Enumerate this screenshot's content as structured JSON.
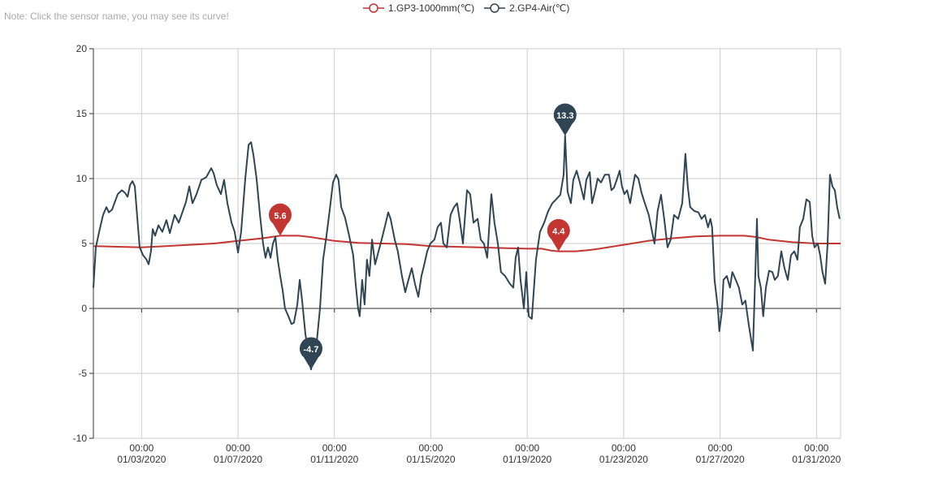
{
  "note": "Note: Click the sensor name, you may see its curve!",
  "legend": [
    {
      "label": "1.GP3-1000mm(℃)",
      "color": "#c23531"
    },
    {
      "label": "2.GP4-Air(℃)",
      "color": "#2f4554"
    }
  ],
  "chart_data": {
    "type": "line",
    "title": "",
    "xlabel": "",
    "ylabel": "",
    "xlim": [
      0,
      31
    ],
    "ylim": [
      -10,
      20
    ],
    "y_ticks": [
      20,
      15,
      10,
      5,
      0,
      -5,
      -10
    ],
    "x_ticks": [
      {
        "x": 2,
        "time": "00:00",
        "date": "01/03/2020"
      },
      {
        "x": 6,
        "time": "00:00",
        "date": "01/07/2020"
      },
      {
        "x": 10,
        "time": "00:00",
        "date": "01/11/2020"
      },
      {
        "x": 14,
        "time": "00:00",
        "date": "01/15/2020"
      },
      {
        "x": 18,
        "time": "00:00",
        "date": "01/19/2020"
      },
      {
        "x": 22,
        "time": "00:00",
        "date": "01/23/2020"
      },
      {
        "x": 26,
        "time": "00:00",
        "date": "01/27/2020"
      },
      {
        "x": 30,
        "time": "00:00",
        "date": "01/31/2020"
      }
    ],
    "grid": true,
    "legend_position": "top-center",
    "series": [
      {
        "name": "1.GP3-1000mm(℃)",
        "color": "#c23531",
        "points": [
          [
            0,
            4.8
          ],
          [
            1,
            4.75
          ],
          [
            2,
            4.7
          ],
          [
            3,
            4.8
          ],
          [
            4,
            4.9
          ],
          [
            5,
            5.0
          ],
          [
            6,
            5.2
          ],
          [
            7,
            5.4
          ],
          [
            7.75,
            5.6
          ],
          [
            8.5,
            5.6
          ],
          [
            9,
            5.5
          ],
          [
            9.5,
            5.35
          ],
          [
            10,
            5.2
          ],
          [
            11,
            5.05
          ],
          [
            12,
            5.0
          ],
          [
            13,
            4.95
          ],
          [
            14,
            4.8
          ],
          [
            15,
            4.75
          ],
          [
            16,
            4.7
          ],
          [
            17,
            4.65
          ],
          [
            18,
            4.6
          ],
          [
            18.6,
            4.6
          ],
          [
            19,
            4.45
          ],
          [
            19.3,
            4.4
          ],
          [
            20,
            4.4
          ],
          [
            20.6,
            4.5
          ],
          [
            21,
            4.6
          ],
          [
            22,
            4.9
          ],
          [
            23,
            5.2
          ],
          [
            24,
            5.4
          ],
          [
            25,
            5.55
          ],
          [
            26,
            5.6
          ],
          [
            27,
            5.6
          ],
          [
            27.5,
            5.5
          ],
          [
            28,
            5.3
          ],
          [
            29,
            5.1
          ],
          [
            30,
            5.0
          ],
          [
            31,
            5.0
          ]
        ],
        "mark_points": [
          {
            "x": 7.75,
            "value": 5.6,
            "label": "5.6"
          },
          {
            "x": 19.3,
            "value": 4.4,
            "label": "4.4"
          }
        ]
      },
      {
        "name": "2.GP4-Air(℃)",
        "color": "#2f4554",
        "points": [
          [
            0,
            1.6
          ],
          [
            0.1,
            4.7
          ],
          [
            0.24,
            5.9
          ],
          [
            0.4,
            7.2
          ],
          [
            0.54,
            7.8
          ],
          [
            0.64,
            7.4
          ],
          [
            0.77,
            7.6
          ],
          [
            1.01,
            8.8
          ],
          [
            1.18,
            9.1
          ],
          [
            1.31,
            8.9
          ],
          [
            1.42,
            8.6
          ],
          [
            1.52,
            9.5
          ],
          [
            1.62,
            9.8
          ],
          [
            1.72,
            9.4
          ],
          [
            1.85,
            6.3
          ],
          [
            1.92,
            4.7
          ],
          [
            2.06,
            4.1
          ],
          [
            2.19,
            3.8
          ],
          [
            2.29,
            3.4
          ],
          [
            2.39,
            4.4
          ],
          [
            2.46,
            6.1
          ],
          [
            2.56,
            5.6
          ],
          [
            2.7,
            6.4
          ],
          [
            2.86,
            5.9
          ],
          [
            3.03,
            6.8
          ],
          [
            3.17,
            5.8
          ],
          [
            3.37,
            7.2
          ],
          [
            3.54,
            6.6
          ],
          [
            3.71,
            7.5
          ],
          [
            3.84,
            8.2
          ],
          [
            3.98,
            9.4
          ],
          [
            4.11,
            8.1
          ],
          [
            4.28,
            8.8
          ],
          [
            4.48,
            9.9
          ],
          [
            4.68,
            10.1
          ],
          [
            4.89,
            10.8
          ],
          [
            4.99,
            10.4
          ],
          [
            5.12,
            9.5
          ],
          [
            5.29,
            8.8
          ],
          [
            5.42,
            9.9
          ],
          [
            5.56,
            8.1
          ],
          [
            5.73,
            6.6
          ],
          [
            5.86,
            5.9
          ],
          [
            6.0,
            4.3
          ],
          [
            6.13,
            5.9
          ],
          [
            6.3,
            10.0
          ],
          [
            6.44,
            12.6
          ],
          [
            6.54,
            12.8
          ],
          [
            6.64,
            11.8
          ],
          [
            6.77,
            10.0
          ],
          [
            6.91,
            7.2
          ],
          [
            7.04,
            5.0
          ],
          [
            7.14,
            3.9
          ],
          [
            7.24,
            4.7
          ],
          [
            7.35,
            3.9
          ],
          [
            7.45,
            5.0
          ],
          [
            7.55,
            5.5
          ],
          [
            7.65,
            3.75
          ],
          [
            7.75,
            2.5
          ],
          [
            7.85,
            1.4
          ],
          [
            7.95,
            0.0
          ],
          [
            8.09,
            -0.6
          ],
          [
            8.22,
            -1.2
          ],
          [
            8.32,
            -1.1
          ],
          [
            8.46,
            0.3
          ],
          [
            8.56,
            2.2
          ],
          [
            8.66,
            0.6
          ],
          [
            8.79,
            -1.9
          ],
          [
            8.93,
            -3.75
          ],
          [
            9.03,
            -4.7
          ],
          [
            9.13,
            -3.4
          ],
          [
            9.27,
            -2.5
          ],
          [
            9.4,
            0.0
          ],
          [
            9.53,
            3.75
          ],
          [
            9.67,
            5.6
          ],
          [
            9.8,
            7.5
          ],
          [
            9.94,
            9.7
          ],
          [
            10.07,
            10.3
          ],
          [
            10.17,
            9.9
          ],
          [
            10.28,
            7.8
          ],
          [
            10.44,
            7.0
          ],
          [
            10.61,
            5.6
          ],
          [
            10.78,
            4.1
          ],
          [
            10.88,
            1.9
          ],
          [
            10.98,
            0.0
          ],
          [
            11.05,
            -0.6
          ],
          [
            11.15,
            2.2
          ],
          [
            11.25,
            0.3
          ],
          [
            11.35,
            3.75
          ],
          [
            11.45,
            2.5
          ],
          [
            11.56,
            5.3
          ],
          [
            11.69,
            3.4
          ],
          [
            11.83,
            4.4
          ],
          [
            11.96,
            5.3
          ],
          [
            12.13,
            6.6
          ],
          [
            12.23,
            7.4
          ],
          [
            12.33,
            6.9
          ],
          [
            12.5,
            5.3
          ],
          [
            12.63,
            4.4
          ],
          [
            12.8,
            2.5
          ],
          [
            12.94,
            1.25
          ],
          [
            13.07,
            2.2
          ],
          [
            13.21,
            3.1
          ],
          [
            13.34,
            1.9
          ],
          [
            13.48,
            0.9
          ],
          [
            13.61,
            2.5
          ],
          [
            13.71,
            3.25
          ],
          [
            13.85,
            4.4
          ],
          [
            13.98,
            5.0
          ],
          [
            14.15,
            5.3
          ],
          [
            14.28,
            6.25
          ],
          [
            14.42,
            6.6
          ],
          [
            14.52,
            5.0
          ],
          [
            14.66,
            4.7
          ],
          [
            14.82,
            7.2
          ],
          [
            14.96,
            7.8
          ],
          [
            15.09,
            8.1
          ],
          [
            15.19,
            6.9
          ],
          [
            15.33,
            5.0
          ],
          [
            15.5,
            9.1
          ],
          [
            15.63,
            8.8
          ],
          [
            15.77,
            6.6
          ],
          [
            15.94,
            6.9
          ],
          [
            16.07,
            5.3
          ],
          [
            16.2,
            5.0
          ],
          [
            16.34,
            3.9
          ],
          [
            16.51,
            8.8
          ],
          [
            16.64,
            6.6
          ],
          [
            16.78,
            5.0
          ],
          [
            16.91,
            2.8
          ],
          [
            17.08,
            2.5
          ],
          [
            17.28,
            1.9
          ],
          [
            17.42,
            1.6
          ],
          [
            17.52,
            3.9
          ],
          [
            17.62,
            4.7
          ],
          [
            17.72,
            2.2
          ],
          [
            17.86,
            0.0
          ],
          [
            17.96,
            2.8
          ],
          [
            18.06,
            -0.6
          ],
          [
            18.19,
            -0.8
          ],
          [
            18.36,
            3.75
          ],
          [
            18.53,
            5.9
          ],
          [
            18.7,
            6.6
          ],
          [
            18.87,
            7.5
          ],
          [
            19.04,
            8.1
          ],
          [
            19.2,
            8.4
          ],
          [
            19.37,
            8.75
          ],
          [
            19.51,
            10.3
          ],
          [
            19.57,
            13.3
          ],
          [
            19.67,
            9.0
          ],
          [
            19.81,
            8.1
          ],
          [
            19.91,
            9.9
          ],
          [
            20.05,
            10.6
          ],
          [
            20.18,
            9.7
          ],
          [
            20.35,
            8.4
          ],
          [
            20.45,
            9.9
          ],
          [
            20.59,
            10.5
          ],
          [
            20.69,
            8.1
          ],
          [
            20.82,
            9.1
          ],
          [
            20.92,
            10.0
          ],
          [
            21.06,
            9.7
          ],
          [
            21.22,
            10.3
          ],
          [
            21.39,
            10.3
          ],
          [
            21.49,
            9.1
          ],
          [
            21.6,
            9.3
          ],
          [
            21.73,
            10.0
          ],
          [
            21.83,
            10.6
          ],
          [
            21.93,
            9.4
          ],
          [
            22.03,
            8.8
          ],
          [
            22.14,
            9.1
          ],
          [
            22.27,
            8.1
          ],
          [
            22.37,
            9.25
          ],
          [
            22.47,
            10.3
          ],
          [
            22.61,
            10.0
          ],
          [
            22.74,
            8.9
          ],
          [
            22.88,
            8.1
          ],
          [
            23.04,
            7.2
          ],
          [
            23.18,
            5.9
          ],
          [
            23.28,
            5.0
          ],
          [
            23.41,
            7.5
          ],
          [
            23.55,
            8.75
          ],
          [
            23.68,
            6.9
          ],
          [
            23.82,
            4.7
          ],
          [
            23.95,
            5.3
          ],
          [
            24.09,
            7.2
          ],
          [
            24.26,
            6.9
          ],
          [
            24.43,
            8.1
          ],
          [
            24.56,
            11.9
          ],
          [
            24.66,
            9.4
          ],
          [
            24.76,
            7.8
          ],
          [
            24.93,
            7.5
          ],
          [
            25.1,
            7.4
          ],
          [
            25.23,
            6.9
          ],
          [
            25.37,
            7.2
          ],
          [
            25.5,
            6.25
          ],
          [
            25.6,
            6.9
          ],
          [
            25.67,
            6.25
          ],
          [
            25.77,
            2.2
          ],
          [
            25.91,
            0.0
          ],
          [
            25.97,
            -1.75
          ],
          [
            26.07,
            -0.3
          ],
          [
            26.14,
            2.2
          ],
          [
            26.28,
            2.5
          ],
          [
            26.41,
            1.6
          ],
          [
            26.51,
            2.8
          ],
          [
            26.65,
            2.2
          ],
          [
            26.78,
            1.6
          ],
          [
            26.92,
            0.3
          ],
          [
            27.05,
            0.6
          ],
          [
            27.19,
            -1.25
          ],
          [
            27.36,
            -3.25
          ],
          [
            27.46,
            2.5
          ],
          [
            27.53,
            6.9
          ],
          [
            27.59,
            2.5
          ],
          [
            27.69,
            1.6
          ],
          [
            27.79,
            -0.6
          ],
          [
            27.9,
            1.6
          ],
          [
            28.03,
            2.9
          ],
          [
            28.17,
            2.8
          ],
          [
            28.27,
            2.2
          ],
          [
            28.4,
            2.5
          ],
          [
            28.54,
            4.4
          ],
          [
            28.67,
            3.1
          ],
          [
            28.81,
            2.2
          ],
          [
            28.94,
            4.1
          ],
          [
            29.08,
            4.4
          ],
          [
            29.21,
            3.75
          ],
          [
            29.31,
            6.25
          ],
          [
            29.45,
            6.9
          ],
          [
            29.58,
            8.4
          ],
          [
            29.72,
            8.2
          ],
          [
            29.82,
            5.6
          ],
          [
            29.92,
            4.7
          ],
          [
            30.05,
            5.0
          ],
          [
            30.15,
            4.1
          ],
          [
            30.25,
            2.8
          ],
          [
            30.36,
            1.9
          ],
          [
            30.46,
            5.0
          ],
          [
            30.56,
            10.3
          ],
          [
            30.66,
            9.4
          ],
          [
            30.76,
            9.1
          ],
          [
            30.86,
            7.8
          ],
          [
            30.96,
            6.9
          ]
        ],
        "mark_points": [
          {
            "x": 19.57,
            "value": 13.3,
            "label": "13.3"
          },
          {
            "x": 9.03,
            "value": -4.7,
            "label": "-4.7"
          }
        ]
      }
    ]
  }
}
